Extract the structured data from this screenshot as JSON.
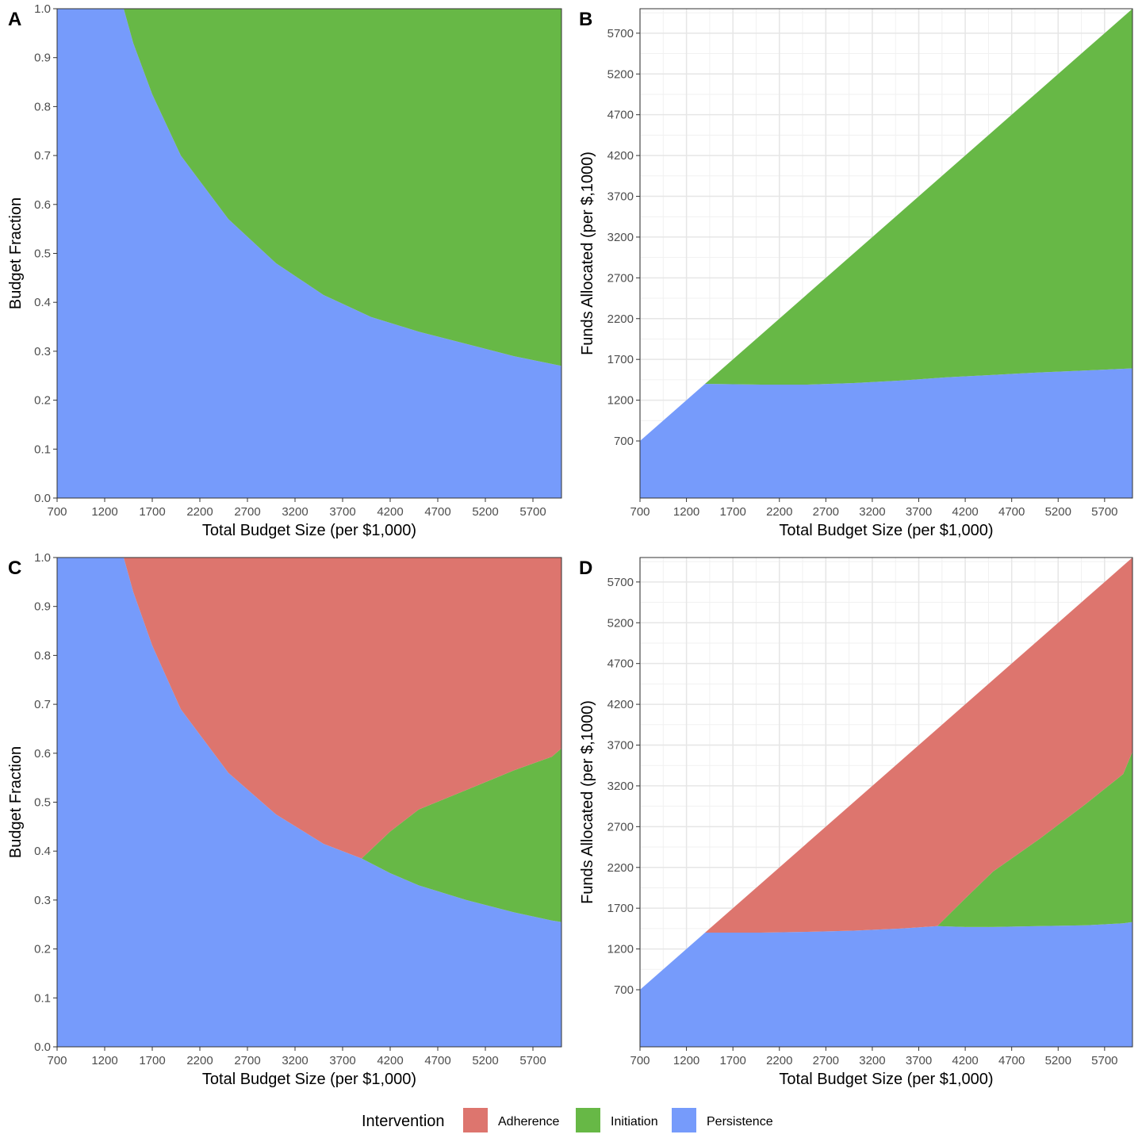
{
  "colors": {
    "Adherence": "#dd756e",
    "Initiation": "#67b846",
    "Persistence": "#769bfb",
    "grid_major": "#e6e6e6",
    "grid_minor": "#f1f1f1"
  },
  "legend": {
    "title": "Intervention",
    "items": [
      {
        "label": "Adherence",
        "color": "#dd756e"
      },
      {
        "label": "Initiation",
        "color": "#67b846"
      },
      {
        "label": "Persistence",
        "color": "#769bfb"
      }
    ]
  },
  "chart_data": [
    {
      "panel": "A",
      "type": "area",
      "stacking": "fill",
      "grid": false,
      "xlabel": "Total Budget Size (per $1,000)",
      "ylabel": "Budget Fraction",
      "xlim": [
        700,
        6000
      ],
      "ylim": [
        0,
        1
      ],
      "xticks": [
        700,
        1200,
        1700,
        2200,
        2700,
        3200,
        3700,
        4200,
        4700,
        5200,
        5700
      ],
      "yticks": [
        0.0,
        0.1,
        0.2,
        0.3,
        0.4,
        0.5,
        0.6,
        0.7,
        0.8,
        0.9,
        1.0
      ],
      "ytick_labels": [
        "0.0",
        "0.1",
        "0.2",
        "0.3",
        "0.4",
        "0.5",
        "0.6",
        "0.7",
        "0.8",
        "0.9",
        "1.0"
      ],
      "x": [
        700,
        1400,
        1500,
        1700,
        2000,
        2500,
        3000,
        3500,
        4000,
        4500,
        5000,
        5500,
        6000
      ],
      "series": [
        {
          "name": "Persistence",
          "values": [
            1.0,
            1.0,
            0.93,
            0.825,
            0.7,
            0.57,
            0.48,
            0.415,
            0.37,
            0.34,
            0.315,
            0.29,
            0.27
          ]
        },
        {
          "name": "Initiation",
          "values": [
            0.0,
            0.0,
            0.07,
            0.175,
            0.3,
            0.43,
            0.52,
            0.585,
            0.63,
            0.66,
            0.685,
            0.71,
            0.73
          ]
        }
      ]
    },
    {
      "panel": "B",
      "type": "area",
      "stacking": "stack",
      "grid": true,
      "xlabel": "Total Budget Size (per $1,000)",
      "ylabel": "Funds Allocated (per $,1000)",
      "xlim": [
        700,
        6000
      ],
      "ylim": [
        0,
        6000
      ],
      "xticks": [
        700,
        1200,
        1700,
        2200,
        2700,
        3200,
        3700,
        4200,
        4700,
        5200,
        5700
      ],
      "yticks": [
        700,
        1200,
        1700,
        2200,
        2700,
        3200,
        3700,
        4200,
        4700,
        5200,
        5700
      ],
      "x": [
        700,
        1400,
        2000,
        2500,
        3000,
        3500,
        4000,
        4500,
        5000,
        5500,
        6000
      ],
      "series": [
        {
          "name": "Persistence",
          "values": [
            700,
            1400,
            1390,
            1390,
            1410,
            1440,
            1480,
            1510,
            1540,
            1565,
            1590
          ]
        },
        {
          "name": "Initiation",
          "values": [
            0,
            0,
            610,
            1110,
            1590,
            2060,
            2520,
            2990,
            3460,
            3935,
            4410
          ]
        }
      ]
    },
    {
      "panel": "C",
      "type": "area",
      "stacking": "fill",
      "grid": false,
      "xlabel": "Total Budget Size (per $1,000)",
      "ylabel": "Budget Fraction",
      "xlim": [
        700,
        6000
      ],
      "ylim": [
        0,
        1
      ],
      "xticks": [
        700,
        1200,
        1700,
        2200,
        2700,
        3200,
        3700,
        4200,
        4700,
        5200,
        5700
      ],
      "yticks": [
        0.0,
        0.1,
        0.2,
        0.3,
        0.4,
        0.5,
        0.6,
        0.7,
        0.8,
        0.9,
        1.0
      ],
      "ytick_labels": [
        "0.0",
        "0.1",
        "0.2",
        "0.3",
        "0.4",
        "0.5",
        "0.6",
        "0.7",
        "0.8",
        "0.9",
        "1.0"
      ],
      "x": [
        700,
        1400,
        1500,
        1700,
        2000,
        2500,
        3000,
        3500,
        3900,
        4200,
        4500,
        5000,
        5500,
        5900,
        6000
      ],
      "series": [
        {
          "name": "Persistence",
          "values": [
            1.0,
            1.0,
            0.93,
            0.82,
            0.69,
            0.56,
            0.475,
            0.415,
            0.385,
            0.355,
            0.33,
            0.3,
            0.275,
            0.258,
            0.255
          ]
        },
        {
          "name": "Initiation",
          "values": [
            0.0,
            0.0,
            0.0,
            0.0,
            0.0,
            0.0,
            0.0,
            0.0,
            0.0,
            0.085,
            0.155,
            0.225,
            0.29,
            0.335,
            0.355
          ]
        },
        {
          "name": "Adherence",
          "values": [
            0.0,
            0.0,
            0.07,
            0.18,
            0.31,
            0.44,
            0.525,
            0.585,
            0.615,
            0.56,
            0.515,
            0.475,
            0.435,
            0.407,
            0.39
          ]
        }
      ]
    },
    {
      "panel": "D",
      "type": "area",
      "stacking": "stack",
      "grid": true,
      "xlabel": "Total Budget Size (per $1,000)",
      "ylabel": "Funds Allocated (per $,1000)",
      "xlim": [
        700,
        6000
      ],
      "ylim": [
        0,
        6000
      ],
      "xticks": [
        700,
        1200,
        1700,
        2200,
        2700,
        3200,
        3700,
        4200,
        4700,
        5200,
        5700
      ],
      "yticks": [
        700,
        1200,
        1700,
        2200,
        2700,
        3200,
        3700,
        4200,
        4700,
        5200,
        5700
      ],
      "x": [
        700,
        1400,
        2000,
        2500,
        3000,
        3500,
        3900,
        4200,
        4500,
        5000,
        5500,
        5900,
        6000
      ],
      "series": [
        {
          "name": "Persistence",
          "values": [
            700,
            1400,
            1400,
            1410,
            1425,
            1450,
            1480,
            1470,
            1470,
            1480,
            1490,
            1515,
            1530
          ]
        },
        {
          "name": "Initiation",
          "values": [
            0,
            0,
            0,
            0,
            0,
            0,
            0,
            350,
            680,
            1070,
            1490,
            1830,
            2090
          ]
        },
        {
          "name": "Adherence",
          "values": [
            0,
            0,
            600,
            1090,
            1575,
            2050,
            2420,
            2380,
            2350,
            2450,
            2520,
            2555,
            2380
          ]
        }
      ]
    }
  ]
}
